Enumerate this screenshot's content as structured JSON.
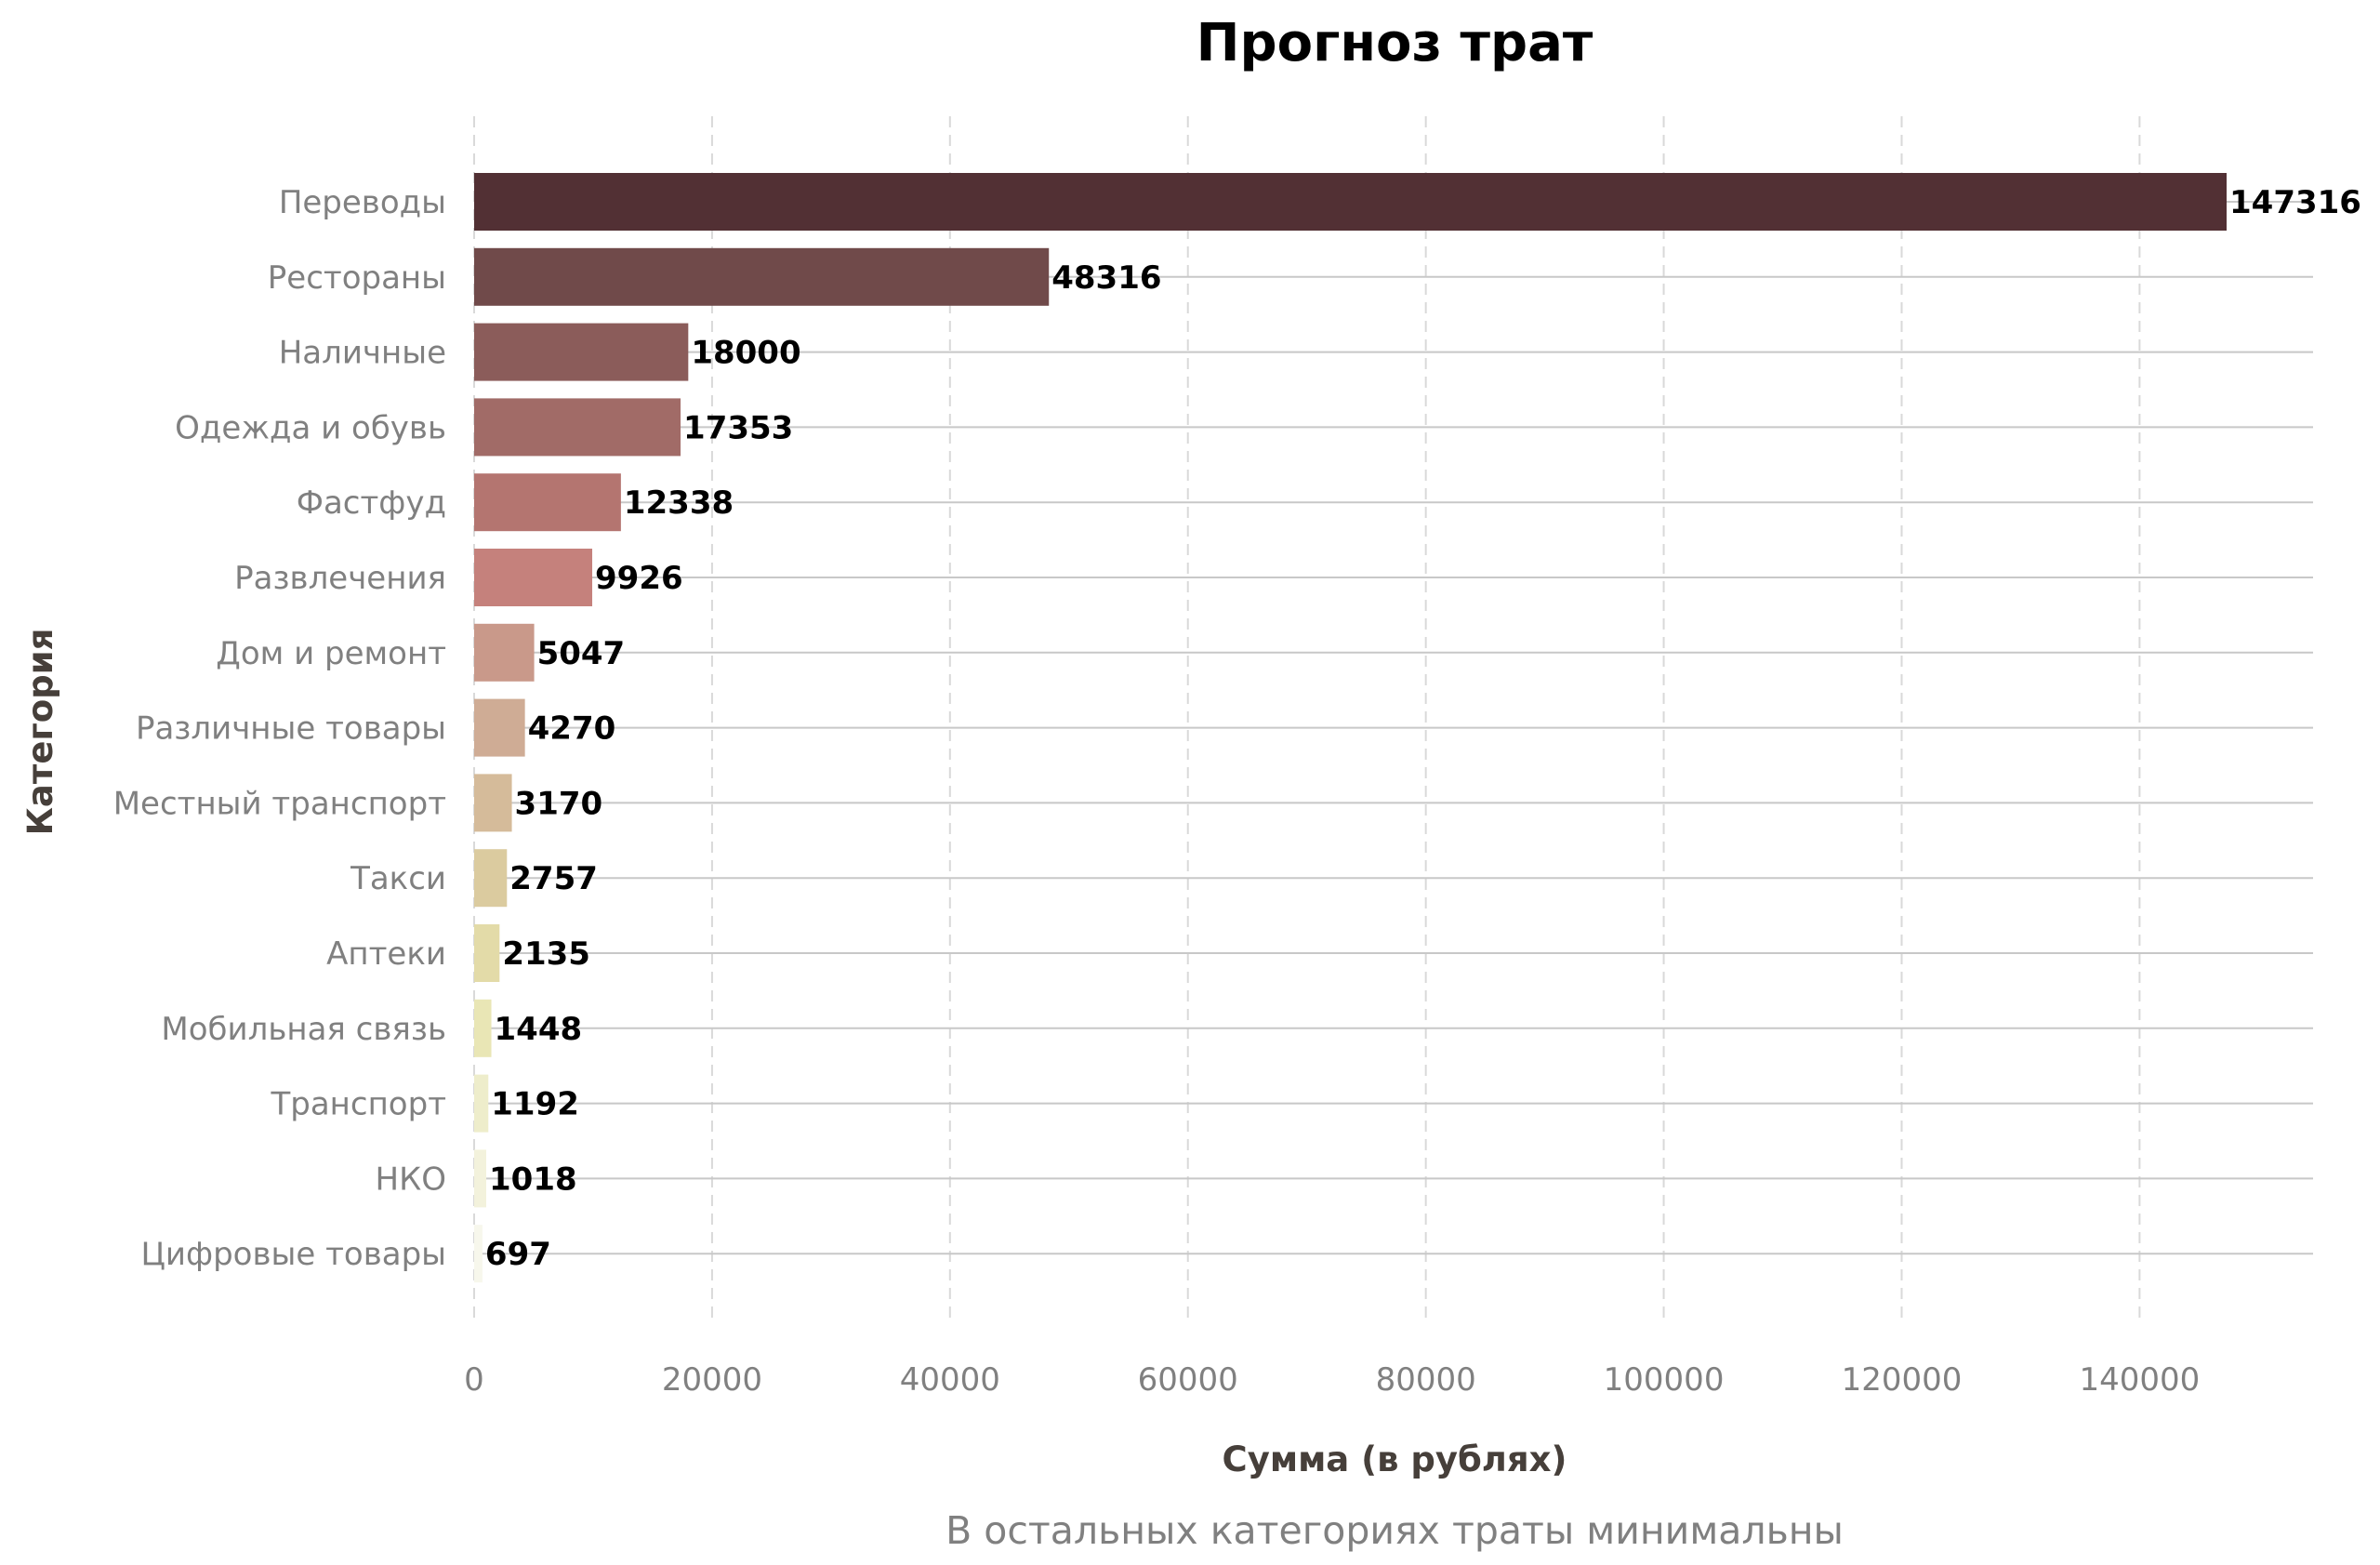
{
  "chart_data": {
    "type": "bar",
    "orientation": "horizontal",
    "title": "Прогноз трат",
    "xlabel": "Сумма (в рублях)",
    "ylabel": "Категория",
    "note": "В остальных категориях траты минимальны",
    "xlim": [
      0,
      155000
    ],
    "xticks": [
      0,
      20000,
      40000,
      60000,
      80000,
      100000,
      120000,
      140000
    ],
    "xtick_labels": [
      "0",
      "20000",
      "40000",
      "60000",
      "80000",
      "100000",
      "120000",
      "140000"
    ],
    "grid": true,
    "categories": [
      "Переводы",
      "Рестораны",
      "Наличные",
      "Одежда и обувь",
      "Фастфуд",
      "Развлечения",
      "Дом и ремонт",
      "Различные товары",
      "Местный транспорт",
      "Такси",
      "Аптеки",
      "Мобильная связь",
      "Транспорт",
      "НКО",
      "Цифровые товары"
    ],
    "values": [
      147316,
      48316,
      18000,
      17353,
      12338,
      9926,
      5047,
      4270,
      3170,
      2757,
      2135,
      1448,
      1192,
      1018,
      697
    ],
    "value_labels": [
      "147316",
      "48316",
      "18000",
      "17353",
      "12338",
      "9926",
      "5047",
      "4270",
      "3170",
      "2757",
      "2135",
      "1448",
      "1192",
      "1018",
      "697"
    ],
    "colors": [
      "#523034",
      "#704a4a",
      "#8b5c5a",
      "#a16b67",
      "#b47570",
      "#c5817c",
      "#c9998a",
      "#cfac95",
      "#d5bb9a",
      "#dbcb9f",
      "#e3dba8",
      "#e9e6b5",
      "#eeedcb",
      "#f3f2dc",
      "#f7f7ec"
    ]
  }
}
